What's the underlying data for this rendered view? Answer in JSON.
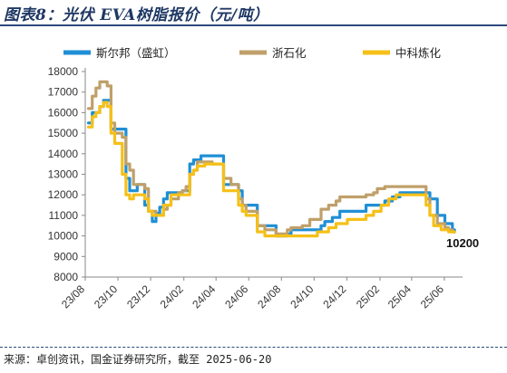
{
  "title": "图表8：光伏 EVA树脂报价（元/吨）",
  "source": "来源：卓创资讯，国金证券研究所，截至 2025-06-20",
  "colors": {
    "title": "#1f3864",
    "rule": "#2b4a7a"
  },
  "chart_data": {
    "type": "line",
    "xlabel": "",
    "ylabel": "",
    "x_tick_labels": [
      "23/08",
      "23/10",
      "23/12",
      "24/02",
      "24/04",
      "24/06",
      "24/08",
      "24/10",
      "24/12",
      "25/02",
      "25/04",
      "25/06"
    ],
    "ylim": [
      8000,
      18000
    ],
    "y_ticks": [
      8000,
      9000,
      10000,
      11000,
      12000,
      13000,
      14000,
      15000,
      16000,
      17000,
      18000
    ],
    "y_tick_labels": [
      "8000",
      "9000",
      "10000",
      "11000",
      "12000",
      "13000",
      "14000",
      "15000",
      "16000",
      "17000",
      "18000"
    ],
    "grid": false,
    "legend": "top",
    "annotation": "10200",
    "series": [
      {
        "name": "斯尔邦（盛虹）",
        "color": "#1f8fd6",
        "x": [
          "2023-08-07",
          "2023-08-14",
          "2023-08-21",
          "2023-08-28",
          "2023-09-04",
          "2023-09-11",
          "2023-09-18",
          "2023-09-25",
          "2023-10-02",
          "2023-10-09",
          "2023-10-16",
          "2023-10-23",
          "2023-10-30",
          "2023-11-06",
          "2023-11-13",
          "2023-11-20",
          "2023-11-27",
          "2023-12-04",
          "2023-12-11",
          "2023-12-18",
          "2023-12-25",
          "2024-01-01",
          "2024-01-08",
          "2024-01-15",
          "2024-01-22",
          "2024-01-29",
          "2024-02-05",
          "2024-02-12",
          "2024-02-19",
          "2024-02-26",
          "2024-03-04",
          "2024-03-11",
          "2024-03-18",
          "2024-03-25",
          "2024-04-01",
          "2024-04-08",
          "2024-04-15",
          "2024-04-22",
          "2024-04-29",
          "2024-05-06",
          "2024-05-13",
          "2024-05-20",
          "2024-05-27",
          "2024-06-03",
          "2024-06-10",
          "2024-06-17",
          "2024-06-24",
          "2024-07-01",
          "2024-07-08",
          "2024-07-15",
          "2024-07-22",
          "2024-07-29",
          "2024-08-05",
          "2024-08-12",
          "2024-08-19",
          "2024-08-26",
          "2024-09-02",
          "2024-09-09",
          "2024-09-16",
          "2024-09-23",
          "2024-09-30",
          "2024-10-07",
          "2024-10-14",
          "2024-10-21",
          "2024-10-28",
          "2024-11-04",
          "2024-11-11",
          "2024-11-18",
          "2024-11-25",
          "2024-12-02",
          "2024-12-09",
          "2024-12-16",
          "2024-12-23",
          "2024-12-30",
          "2025-01-06",
          "2025-01-13",
          "2025-01-20",
          "2025-01-27",
          "2025-02-03",
          "2025-02-10",
          "2025-02-17",
          "2025-02-24",
          "2025-03-03",
          "2025-03-10",
          "2025-03-17",
          "2025-03-24",
          "2025-03-31",
          "2025-04-07",
          "2025-04-14",
          "2025-04-21",
          "2025-04-28",
          "2025-05-05",
          "2025-05-12",
          "2025-05-19",
          "2025-05-26",
          "2025-06-02",
          "2025-06-09",
          "2025-06-16",
          "2025-06-20"
        ],
        "values": [
          15500,
          16000,
          16000,
          16300,
          16600,
          16600,
          15200,
          15200,
          15200,
          15200,
          12800,
          12200,
          12200,
          12500,
          12500,
          11500,
          11200,
          10700,
          11100,
          11400,
          11800,
          12100,
          12100,
          12100,
          12100,
          12200,
          12200,
          13500,
          13700,
          13700,
          13900,
          13900,
          13900,
          13900,
          13900,
          13900,
          12500,
          12500,
          12500,
          12500,
          12200,
          11500,
          11500,
          11500,
          11500,
          10500,
          10500,
          10500,
          10500,
          10500,
          10000,
          10000,
          10000,
          10100,
          10300,
          10300,
          10300,
          10300,
          10300,
          10300,
          10300,
          10300,
          10500,
          10700,
          10700,
          10900,
          10900,
          11200,
          11200,
          11200,
          11200,
          11200,
          11200,
          11200,
          11500,
          11500,
          11500,
          11500,
          11500,
          11700,
          11700,
          11900,
          11900,
          12100,
          12100,
          12100,
          12100,
          12100,
          12100,
          12100,
          12100,
          11800,
          11800,
          11000,
          11000,
          10600,
          10600,
          10300,
          10200
        ]
      },
      {
        "name": "浙石化",
        "color": "#bfa06a",
        "x": [
          "2023-08-07",
          "2023-08-14",
          "2023-08-21",
          "2023-08-28",
          "2023-09-04",
          "2023-09-11",
          "2023-09-18",
          "2023-09-25",
          "2023-10-02",
          "2023-10-09",
          "2023-10-16",
          "2023-10-23",
          "2023-10-30",
          "2023-11-06",
          "2023-11-13",
          "2023-11-20",
          "2023-11-27",
          "2023-12-04",
          "2023-12-11",
          "2023-12-18",
          "2023-12-25",
          "2024-01-01",
          "2024-01-08",
          "2024-01-15",
          "2024-01-22",
          "2024-01-29",
          "2024-02-05",
          "2024-02-12",
          "2024-02-19",
          "2024-02-26",
          "2024-03-04",
          "2024-03-11",
          "2024-03-18",
          "2024-03-25",
          "2024-04-01",
          "2024-04-08",
          "2024-04-15",
          "2024-04-22",
          "2024-04-29",
          "2024-05-06",
          "2024-05-13",
          "2024-05-20",
          "2024-05-27",
          "2024-06-03",
          "2024-06-10",
          "2024-06-17",
          "2024-06-24",
          "2024-07-01",
          "2024-07-08",
          "2024-07-15",
          "2024-07-22",
          "2024-07-29",
          "2024-08-05",
          "2024-08-12",
          "2024-08-19",
          "2024-08-26",
          "2024-09-02",
          "2024-09-09",
          "2024-09-16",
          "2024-09-23",
          "2024-09-30",
          "2024-10-07",
          "2024-10-14",
          "2024-10-21",
          "2024-10-28",
          "2024-11-04",
          "2024-11-11",
          "2024-11-18",
          "2024-11-25",
          "2024-12-02",
          "2024-12-09",
          "2024-12-16",
          "2024-12-23",
          "2024-12-30",
          "2025-01-06",
          "2025-01-13",
          "2025-01-20",
          "2025-01-27",
          "2025-02-03",
          "2025-02-10",
          "2025-02-17",
          "2025-02-24",
          "2025-03-03",
          "2025-03-10",
          "2025-03-17",
          "2025-03-24",
          "2025-03-31",
          "2025-04-07",
          "2025-04-14",
          "2025-04-21",
          "2025-04-28",
          "2025-05-05",
          "2025-05-12",
          "2025-05-19",
          "2025-05-26",
          "2025-06-02",
          "2025-06-09",
          "2025-06-16",
          "2025-06-20"
        ],
        "values": [
          16200,
          16800,
          17200,
          17500,
          17500,
          17300,
          15500,
          15000,
          15000,
          14800,
          13500,
          13200,
          12500,
          12500,
          12500,
          12300,
          11200,
          11200,
          11000,
          11000,
          11300,
          11500,
          11800,
          11800,
          12100,
          12200,
          12400,
          13000,
          13200,
          13600,
          13600,
          13600,
          13600,
          13500,
          13500,
          13500,
          12800,
          12800,
          12500,
          12500,
          11800,
          11500,
          11200,
          11200,
          11200,
          10500,
          10500,
          10300,
          10300,
          10300,
          10100,
          10100,
          10100,
          10300,
          10400,
          10400,
          10400,
          10500,
          10500,
          10800,
          10800,
          10800,
          11300,
          11300,
          11500,
          11500,
          11700,
          11900,
          11900,
          11900,
          11900,
          11900,
          11900,
          11900,
          12000,
          12000,
          12100,
          12300,
          12300,
          12400,
          12400,
          12400,
          12400,
          12400,
          12400,
          12400,
          12400,
          12400,
          12400,
          12400,
          11800,
          11000,
          11000,
          10600,
          10600,
          10400,
          10300,
          10200,
          10200
        ]
      },
      {
        "name": "中科炼化",
        "color": "#f5c018",
        "x": [
          "2023-08-07",
          "2023-08-14",
          "2023-08-21",
          "2023-08-28",
          "2023-09-04",
          "2023-09-11",
          "2023-09-18",
          "2023-09-25",
          "2023-10-02",
          "2023-10-09",
          "2023-10-16",
          "2023-10-23",
          "2023-10-30",
          "2023-11-06",
          "2023-11-13",
          "2023-11-20",
          "2023-11-27",
          "2023-12-04",
          "2023-12-11",
          "2023-12-18",
          "2023-12-25",
          "2024-01-01",
          "2024-01-08",
          "2024-01-15",
          "2024-01-22",
          "2024-01-29",
          "2024-02-05",
          "2024-02-12",
          "2024-02-19",
          "2024-02-26",
          "2024-03-04",
          "2024-03-11",
          "2024-03-18",
          "2024-03-25",
          "2024-04-01",
          "2024-04-08",
          "2024-04-15",
          "2024-04-22",
          "2024-04-29",
          "2024-05-06",
          "2024-05-13",
          "2024-05-20",
          "2024-05-27",
          "2024-06-03",
          "2024-06-10",
          "2024-06-17",
          "2024-06-24",
          "2024-07-01",
          "2024-07-08",
          "2024-07-15",
          "2024-07-22",
          "2024-07-29",
          "2024-08-05",
          "2024-08-12",
          "2024-08-19",
          "2024-08-26",
          "2024-09-02",
          "2024-09-09",
          "2024-09-16",
          "2024-09-23",
          "2024-09-30",
          "2024-10-07",
          "2024-10-14",
          "2024-10-21",
          "2024-10-28",
          "2024-11-04",
          "2024-11-11",
          "2024-11-18",
          "2024-11-25",
          "2024-12-02",
          "2024-12-09",
          "2024-12-16",
          "2024-12-23",
          "2024-12-30",
          "2025-01-06",
          "2025-01-13",
          "2025-01-20",
          "2025-01-27",
          "2025-02-03",
          "2025-02-10",
          "2025-02-17",
          "2025-02-24",
          "2025-03-03",
          "2025-03-10",
          "2025-03-17",
          "2025-03-24",
          "2025-03-31",
          "2025-04-07",
          "2025-04-14",
          "2025-04-21",
          "2025-04-28",
          "2025-05-05",
          "2025-05-12",
          "2025-05-19",
          "2025-05-26",
          "2025-06-02",
          "2025-06-09",
          "2025-06-16",
          "2025-06-20"
        ],
        "values": [
          15300,
          15800,
          16000,
          16300,
          16500,
          16300,
          15000,
          14500,
          14500,
          13000,
          12000,
          11800,
          12000,
          12000,
          12000,
          11800,
          11200,
          11000,
          11000,
          11000,
          11500,
          11500,
          12000,
          12000,
          12000,
          12000,
          12000,
          13000,
          13200,
          13400,
          13400,
          13500,
          13500,
          13500,
          13500,
          13500,
          12200,
          12200,
          12200,
          12200,
          11500,
          11200,
          11000,
          11000,
          11000,
          10200,
          10200,
          10000,
          10000,
          10000,
          10000,
          10000,
          10000,
          10000,
          10000,
          10000,
          10000,
          10000,
          10000,
          10000,
          10000,
          10200,
          10200,
          10200,
          10400,
          10400,
          10600,
          10600,
          10600,
          10800,
          10800,
          10800,
          10800,
          10800,
          11000,
          11000,
          11200,
          11200,
          11500,
          11500,
          11800,
          11800,
          12000,
          12000,
          12000,
          12000,
          12000,
          12000,
          12000,
          12000,
          11500,
          11000,
          10500,
          10500,
          10300,
          10300,
          10200,
          10200,
          10200
        ]
      }
    ]
  }
}
